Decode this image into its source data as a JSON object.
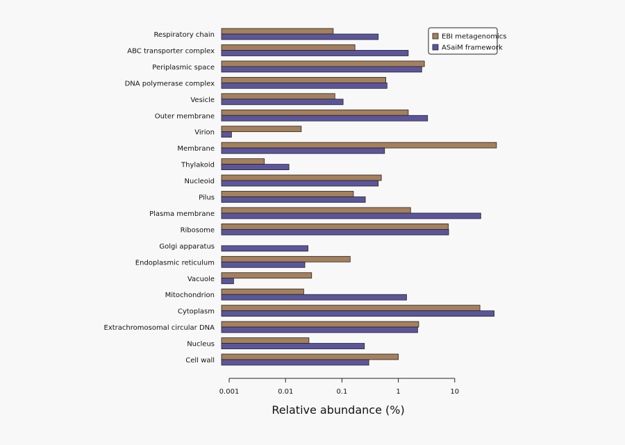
{
  "chart_data": {
    "type": "bar",
    "orientation": "horizontal",
    "xscale": "log",
    "xlim": [
      0.001,
      60
    ],
    "xlabel": "Relative abundance (%)",
    "xticks": [
      "0.001",
      "0.01",
      "0.1",
      "1",
      "10"
    ],
    "categories": [
      "Respiratory chain",
      "ABC transporter complex",
      "Periplasmic space",
      "DNA polymerase complex",
      "Vesicle",
      "Outer membrane",
      "Virion",
      "Membrane",
      "Thylakoid",
      "Nucleoid",
      "Pilus",
      "Plasma membrane",
      "Ribosome",
      "Golgi apparatus",
      "Endoplasmic reticulum",
      "Vacuole",
      "Mitochondrion",
      "Cytoplasm",
      "Extrachromosomal circular DNA",
      "Nucleus",
      "Cell wall"
    ],
    "series": [
      {
        "name": "EBI metagenomics",
        "color": "#a5805c",
        "values": [
          0.07,
          0.17,
          2.9,
          0.6,
          0.075,
          1.5,
          0.019,
          55,
          0.0042,
          0.5,
          0.16,
          1.65,
          7.7,
          null,
          0.14,
          0.029,
          0.021,
          28,
          2.3,
          0.026,
          1.0
        ]
      },
      {
        "name": "ASaiM framework",
        "color": "#5b569c",
        "values": [
          0.44,
          1.5,
          2.6,
          0.63,
          0.105,
          3.3,
          0.0011,
          0.57,
          0.0115,
          0.44,
          0.26,
          29,
          7.8,
          0.025,
          0.022,
          0.0012,
          1.4,
          50,
          2.2,
          0.25,
          0.3
        ]
      }
    ],
    "legend": {
      "position": "top-right"
    },
    "grid": false
  }
}
